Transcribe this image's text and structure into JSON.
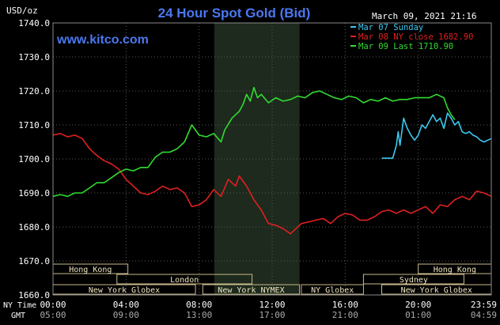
{
  "chart_data": {
    "type": "line",
    "title": "24 Hour Spot Gold (Bid)",
    "website": "www.kitco.com",
    "date_label": "March 09, 2021 21:16",
    "y_unit_label": "USD/oz",
    "ylim": [
      1660,
      1740
    ],
    "y_ticks": [
      "1740.0",
      "1730.0",
      "1720.0",
      "1710.0",
      "1700.0",
      "1690.0",
      "1680.0",
      "1670.0",
      "1660.0"
    ],
    "xlim_hours": [
      0,
      24
    ],
    "x_tick_hours": [
      0,
      4,
      8,
      12,
      16,
      20,
      24
    ],
    "x_row_label_ny": "NY Time",
    "x_row_label_gmt": "GMT",
    "x_ticks_ny": [
      "00:00",
      "04:00",
      "08:00",
      "12:00",
      "16:00",
      "20:00",
      "23:59"
    ],
    "x_ticks_gmt": [
      "05:00",
      "09:00",
      "13:00",
      "17:00",
      "21:00",
      "01:00",
      "04:59"
    ],
    "shaded_region_hours": [
      8.83,
      13.5
    ],
    "legend": [
      {
        "label": "Mar 07 Sunday",
        "color": "#3cc8ee"
      },
      {
        "label": "Mar 08 NY close 1682.90",
        "color": "#e02020"
      },
      {
        "label": "Mar 09 Last 1710.90",
        "color": "#30dc30"
      }
    ],
    "series": [
      {
        "name": "Mar 07 Sunday",
        "color": "#3cc8ee",
        "points": [
          [
            18,
            1700.2
          ],
          [
            18.6,
            1700.2
          ],
          [
            18.8,
            1704
          ],
          [
            18.9,
            1708
          ],
          [
            19.0,
            1704
          ],
          [
            19.2,
            1712
          ],
          [
            19.4,
            1709
          ],
          [
            19.6,
            1707
          ],
          [
            19.8,
            1705.5
          ],
          [
            20.0,
            1707
          ],
          [
            20.2,
            1710
          ],
          [
            20.4,
            1709
          ],
          [
            20.6,
            1711
          ],
          [
            20.8,
            1713
          ],
          [
            21.0,
            1711
          ],
          [
            21.2,
            1712
          ],
          [
            21.4,
            1709
          ],
          [
            21.6,
            1713.5
          ],
          [
            21.8,
            1712
          ],
          [
            22.0,
            1710
          ],
          [
            22.2,
            1711
          ],
          [
            22.4,
            1708
          ],
          [
            22.6,
            1707.5
          ],
          [
            22.8,
            1708
          ],
          [
            23.0,
            1707
          ],
          [
            23.2,
            1706.5
          ],
          [
            23.4,
            1705.5
          ],
          [
            23.6,
            1705
          ],
          [
            23.8,
            1705.5
          ],
          [
            24.0,
            1706
          ]
        ]
      },
      {
        "name": "Mar 08 NY close 1682.90",
        "color": "#e02020",
        "points": [
          [
            0,
            1707
          ],
          [
            0.4,
            1707.5
          ],
          [
            0.8,
            1706.5
          ],
          [
            1.2,
            1707
          ],
          [
            1.6,
            1706
          ],
          [
            2.0,
            1703
          ],
          [
            2.4,
            1701
          ],
          [
            2.8,
            1699.5
          ],
          [
            3.2,
            1698.5
          ],
          [
            3.6,
            1697
          ],
          [
            4.0,
            1694
          ],
          [
            4.4,
            1692
          ],
          [
            4.8,
            1690
          ],
          [
            5.2,
            1689.5
          ],
          [
            5.6,
            1690.5
          ],
          [
            6.0,
            1692
          ],
          [
            6.4,
            1691
          ],
          [
            6.8,
            1691.5
          ],
          [
            7.2,
            1690
          ],
          [
            7.6,
            1686
          ],
          [
            8.0,
            1686.5
          ],
          [
            8.4,
            1688
          ],
          [
            8.8,
            1691
          ],
          [
            9.2,
            1689
          ],
          [
            9.6,
            1694
          ],
          [
            10.0,
            1692
          ],
          [
            10.2,
            1695
          ],
          [
            10.6,
            1692
          ],
          [
            11.0,
            1688
          ],
          [
            11.4,
            1685
          ],
          [
            11.8,
            1681
          ],
          [
            12.2,
            1680.5
          ],
          [
            12.6,
            1679.5
          ],
          [
            13.0,
            1678
          ],
          [
            13.2,
            1679
          ],
          [
            13.6,
            1681
          ],
          [
            14.0,
            1681.5
          ],
          [
            14.4,
            1682
          ],
          [
            14.8,
            1682.5
          ],
          [
            15.2,
            1681
          ],
          [
            15.6,
            1683
          ],
          [
            16.0,
            1684
          ],
          [
            16.4,
            1683.5
          ],
          [
            16.8,
            1682
          ],
          [
            17.2,
            1682
          ],
          [
            17.6,
            1683
          ],
          [
            18.0,
            1684.5
          ],
          [
            18.4,
            1685
          ],
          [
            18.8,
            1684
          ],
          [
            19.2,
            1685
          ],
          [
            19.6,
            1684
          ],
          [
            20.0,
            1685
          ],
          [
            20.4,
            1686
          ],
          [
            20.8,
            1684
          ],
          [
            21.2,
            1686.5
          ],
          [
            21.6,
            1686
          ],
          [
            22.0,
            1688
          ],
          [
            22.4,
            1689
          ],
          [
            22.8,
            1688
          ],
          [
            23.2,
            1690.5
          ],
          [
            23.6,
            1690
          ],
          [
            24.0,
            1689
          ]
        ]
      },
      {
        "name": "Mar 09 Last 1710.90",
        "color": "#30dc30",
        "points": [
          [
            0,
            1689
          ],
          [
            0.4,
            1689.5
          ],
          [
            0.8,
            1689
          ],
          [
            1.2,
            1690
          ],
          [
            1.6,
            1690
          ],
          [
            2.0,
            1691.5
          ],
          [
            2.4,
            1693
          ],
          [
            2.8,
            1693
          ],
          [
            3.2,
            1694.5
          ],
          [
            3.6,
            1696
          ],
          [
            4.0,
            1697
          ],
          [
            4.4,
            1696.5
          ],
          [
            4.8,
            1697.5
          ],
          [
            5.2,
            1697.5
          ],
          [
            5.6,
            1700.5
          ],
          [
            6.0,
            1702
          ],
          [
            6.4,
            1702
          ],
          [
            6.8,
            1703
          ],
          [
            7.2,
            1705
          ],
          [
            7.6,
            1710
          ],
          [
            8.0,
            1707
          ],
          [
            8.4,
            1706.5
          ],
          [
            8.8,
            1707.5
          ],
          [
            9.2,
            1705
          ],
          [
            9.4,
            1708.5
          ],
          [
            9.8,
            1712
          ],
          [
            10.2,
            1714
          ],
          [
            10.4,
            1716
          ],
          [
            10.6,
            1719
          ],
          [
            10.8,
            1717
          ],
          [
            11.0,
            1721
          ],
          [
            11.2,
            1718
          ],
          [
            11.4,
            1719
          ],
          [
            11.8,
            1716.5
          ],
          [
            12.2,
            1718
          ],
          [
            12.6,
            1717
          ],
          [
            13.0,
            1717.5
          ],
          [
            13.4,
            1718.5
          ],
          [
            13.8,
            1718
          ],
          [
            14.2,
            1719.5
          ],
          [
            14.6,
            1720
          ],
          [
            15.0,
            1719
          ],
          [
            15.4,
            1718
          ],
          [
            15.8,
            1717.5
          ],
          [
            16.2,
            1718.5
          ],
          [
            16.6,
            1718
          ],
          [
            17.0,
            1716.5
          ],
          [
            17.4,
            1717.5
          ],
          [
            17.8,
            1717
          ],
          [
            18.2,
            1718
          ],
          [
            18.6,
            1717
          ],
          [
            19.0,
            1717.5
          ],
          [
            19.4,
            1717.5
          ],
          [
            19.8,
            1718
          ],
          [
            20.2,
            1718
          ],
          [
            20.6,
            1718
          ],
          [
            21.0,
            1719
          ],
          [
            21.4,
            1718
          ],
          [
            21.6,
            1715
          ],
          [
            21.8,
            1713
          ],
          [
            22.0,
            1711.5
          ]
        ]
      }
    ],
    "market_sessions": [
      {
        "label": "Hong Kong",
        "start": 0.0,
        "end": 4.1,
        "row": 0
      },
      {
        "label": "Hong Kong",
        "start": 20.0,
        "end": 24.0,
        "row": 0
      },
      {
        "label": "London",
        "start": 3.5,
        "end": 10.9,
        "row": 1
      },
      {
        "label": "Sydney",
        "start": 17.0,
        "end": 22.5,
        "row": 1
      },
      {
        "label": "New York Globex",
        "start": 0.0,
        "end": 7.8,
        "row": 2
      },
      {
        "label": "New York NYMEX",
        "start": 8.2,
        "end": 13.5,
        "row": 2
      },
      {
        "label": "NY Globex",
        "start": 13.6,
        "end": 17.0,
        "row": 2
      },
      {
        "label": "New York Globex",
        "start": 18.0,
        "end": 24.0,
        "row": 2
      }
    ]
  }
}
